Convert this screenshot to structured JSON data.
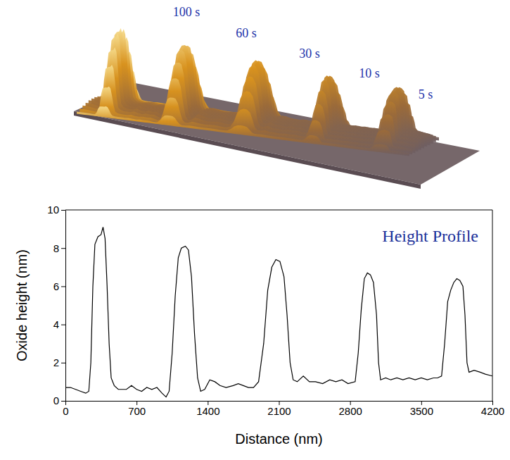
{
  "chart_data": {
    "type": "line",
    "title": "Height Profile",
    "x_label": "Distance (nm)",
    "y_label": "Oxide height (nm)",
    "annotations": [
      "100 s",
      "60 s",
      "30 s",
      "10 s",
      "5 s"
    ],
    "color": "#000000",
    "xlim": [
      0,
      4200
    ],
    "ylim": [
      0,
      10
    ],
    "xticks": [
      0,
      700,
      1400,
      2100,
      2800,
      3500,
      4200
    ],
    "yticks": [
      0,
      2,
      4,
      6,
      8,
      10
    ],
    "x": [
      0,
      50,
      100,
      150,
      200,
      230,
      250,
      270,
      290,
      320,
      350,
      370,
      390,
      410,
      430,
      450,
      480,
      520,
      560,
      600,
      650,
      700,
      750,
      800,
      850,
      900,
      950,
      990,
      1020,
      1050,
      1080,
      1110,
      1140,
      1180,
      1210,
      1240,
      1270,
      1300,
      1330,
      1370,
      1420,
      1470,
      1520,
      1580,
      1650,
      1700,
      1750,
      1800,
      1850,
      1900,
      1950,
      1990,
      2030,
      2070,
      2110,
      2150,
      2180,
      2210,
      2240,
      2280,
      2340,
      2400,
      2460,
      2530,
      2600,
      2660,
      2720,
      2780,
      2850,
      2880,
      2910,
      2940,
      2970,
      3000,
      3030,
      3060,
      3080,
      3100,
      3150,
      3200,
      3260,
      3320,
      3380,
      3440,
      3500,
      3560,
      3620,
      3660,
      3700,
      3730,
      3760,
      3790,
      3820,
      3850,
      3880,
      3910,
      3930,
      3950,
      3970,
      4020,
      4080,
      4130,
      4200
    ],
    "values": [
      0.7,
      0.7,
      0.6,
      0.5,
      0.4,
      0.5,
      2.0,
      6.0,
      8.2,
      8.6,
      8.7,
      9.1,
      8.5,
      6.0,
      3.0,
      1.2,
      0.8,
      0.6,
      0.6,
      0.6,
      0.8,
      0.6,
      0.5,
      0.7,
      0.6,
      0.7,
      0.4,
      0.2,
      0.5,
      2.5,
      5.5,
      7.5,
      8.0,
      8.1,
      7.9,
      6.5,
      3.5,
      1.2,
      0.5,
      0.6,
      1.1,
      1.0,
      0.8,
      0.7,
      0.8,
      0.9,
      0.8,
      0.7,
      0.7,
      1.0,
      3.0,
      5.8,
      7.0,
      7.4,
      7.3,
      6.5,
      4.5,
      2.0,
      1.1,
      1.0,
      1.3,
      1.0,
      1.0,
      0.9,
      1.1,
      1.0,
      1.1,
      0.9,
      1.0,
      2.5,
      4.8,
      6.4,
      6.7,
      6.6,
      6.2,
      4.5,
      2.0,
      1.1,
      1.2,
      1.1,
      1.2,
      1.1,
      1.2,
      1.1,
      1.2,
      1.1,
      1.2,
      1.2,
      1.3,
      3.0,
      5.2,
      5.8,
      6.2,
      6.4,
      6.3,
      6.0,
      4.5,
      2.0,
      1.5,
      1.6,
      1.5,
      1.4,
      1.3
    ]
  }
}
